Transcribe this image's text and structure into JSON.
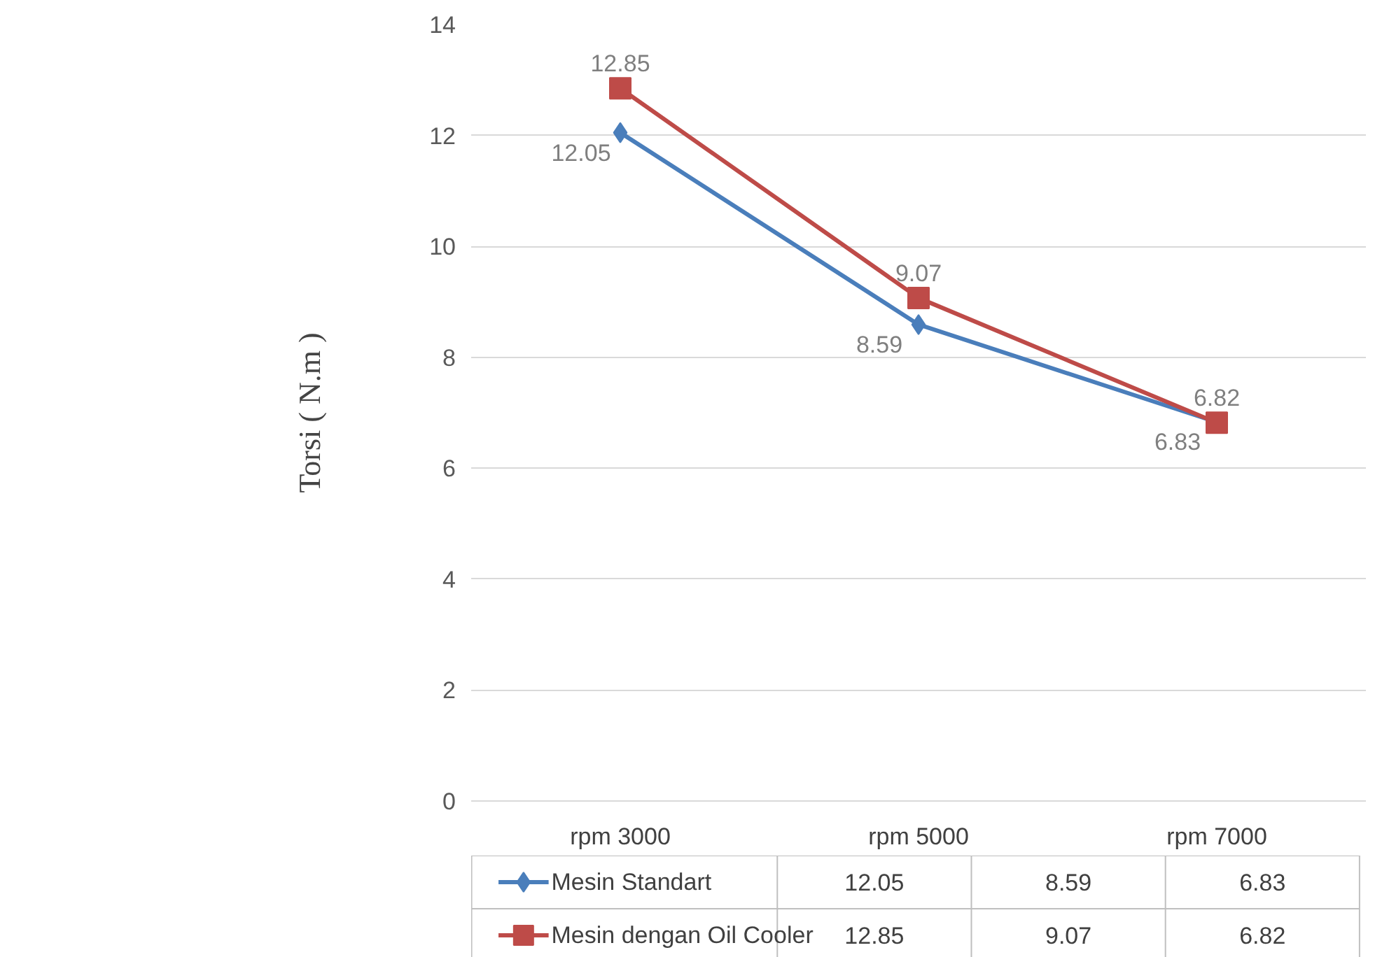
{
  "chart_data": {
    "type": "line",
    "ylabel": "Torsi ( N.m )",
    "categories": [
      "rpm 3000",
      "rpm 5000",
      "rpm 7000"
    ],
    "series": [
      {
        "name": "Mesin Standart",
        "color": "#4a7ebb",
        "marker": "diamond",
        "values": [
          12.05,
          8.59,
          6.83
        ],
        "value_labels": [
          "12.05",
          "8.59",
          "6.83"
        ]
      },
      {
        "name": "Mesin dengan Oil Cooler",
        "color": "#be4b48",
        "marker": "square",
        "values": [
          12.85,
          9.07,
          6.82
        ],
        "value_labels": [
          "12.85",
          "9.07",
          "6.82"
        ]
      }
    ],
    "ylim": [
      0,
      14
    ],
    "yticks": [
      0,
      2,
      4,
      6,
      8,
      10,
      12,
      14
    ],
    "grid": "y",
    "legend": "bottom",
    "annotations": [
      "12.05",
      "8.59",
      "6.83",
      "12.85",
      "9.07",
      "6.82"
    ]
  }
}
